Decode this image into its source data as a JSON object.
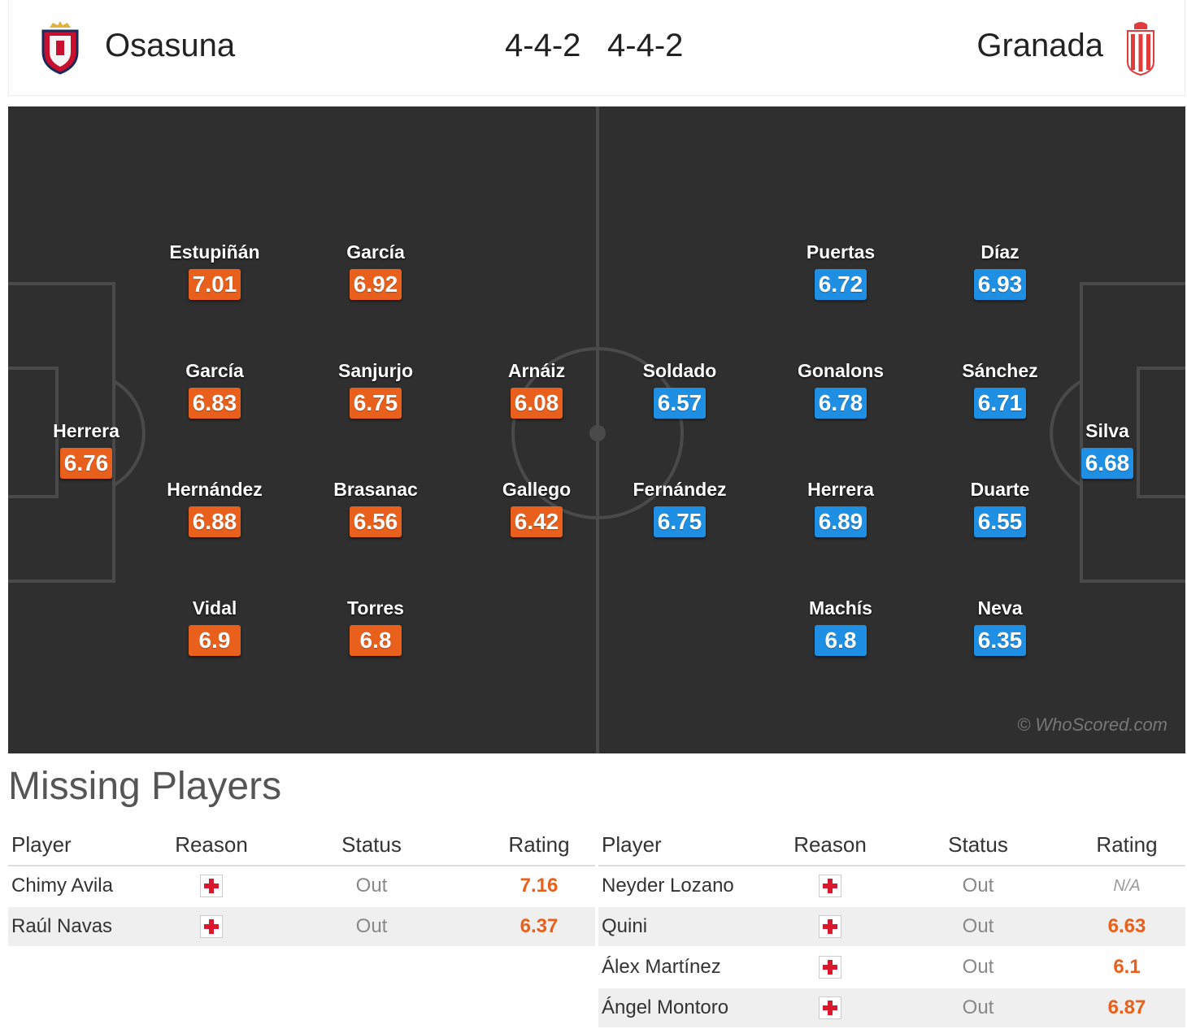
{
  "header": {
    "home_team": "Osasuna",
    "away_team": "Granada",
    "home_formation": "4-4-2",
    "away_formation": "4-4-2"
  },
  "colors": {
    "home_rating": "#e8601c",
    "away_rating": "#1e8fe2",
    "pitch": "#2f2f2f"
  },
  "pitch": {
    "home_players": [
      {
        "name": "Herrera",
        "rating": "6.76"
      },
      {
        "name": "Estupiñán",
        "rating": "7.01"
      },
      {
        "name": "García",
        "rating": "6.83"
      },
      {
        "name": "Hernández",
        "rating": "6.88"
      },
      {
        "name": "Vidal",
        "rating": "6.9"
      },
      {
        "name": "García",
        "rating": "6.92"
      },
      {
        "name": "Sanjurjo",
        "rating": "6.75"
      },
      {
        "name": "Brasanac",
        "rating": "6.56"
      },
      {
        "name": "Torres",
        "rating": "6.8"
      },
      {
        "name": "Arnáiz",
        "rating": "6.08"
      },
      {
        "name": "Gallego",
        "rating": "6.42"
      }
    ],
    "away_players": [
      {
        "name": "Soldado",
        "rating": "6.57"
      },
      {
        "name": "Fernández",
        "rating": "6.75"
      },
      {
        "name": "Puertas",
        "rating": "6.72"
      },
      {
        "name": "Gonalons",
        "rating": "6.78"
      },
      {
        "name": "Herrera",
        "rating": "6.89"
      },
      {
        "name": "Machís",
        "rating": "6.8"
      },
      {
        "name": "Díaz",
        "rating": "6.93"
      },
      {
        "name": "Sánchez",
        "rating": "6.71"
      },
      {
        "name": "Duarte",
        "rating": "6.55"
      },
      {
        "name": "Neva",
        "rating": "6.35"
      },
      {
        "name": "Silva",
        "rating": "6.68"
      }
    ],
    "watermark": "© WhoScored.com"
  },
  "missing": {
    "title": "Missing Players",
    "columns": [
      "Player",
      "Reason",
      "Status",
      "Rating"
    ],
    "home": [
      {
        "player": "Chimy Avila",
        "reason_icon": "injury-icon",
        "status": "Out",
        "rating": "7.16"
      },
      {
        "player": "Raúl Navas",
        "reason_icon": "injury-icon",
        "status": "Out",
        "rating": "6.37"
      }
    ],
    "away": [
      {
        "player": "Neyder Lozano",
        "reason_icon": "injury-icon",
        "status": "Out",
        "rating": "N/A"
      },
      {
        "player": "Quini",
        "reason_icon": "injury-icon",
        "status": "Out",
        "rating": "6.63"
      },
      {
        "player": "Álex Martínez",
        "reason_icon": "injury-icon",
        "status": "Out",
        "rating": "6.1"
      },
      {
        "player": "Ángel Montoro",
        "reason_icon": "injury-icon",
        "status": "Out",
        "rating": "6.87"
      }
    ]
  }
}
